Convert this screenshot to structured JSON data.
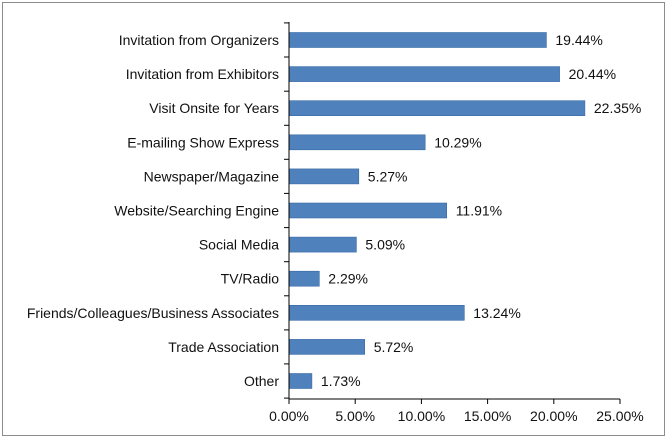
{
  "chart_data": {
    "type": "bar",
    "orientation": "horizontal",
    "categories": [
      "Invitation from Organizers",
      "Invitation from Exhibitors",
      "Visit Onsite for Years",
      "E-mailing Show Express",
      "Newspaper/Magazine",
      "Website/Searching Engine",
      "Social Media",
      "TV/Radio",
      "Friends/Colleagues/Business Associates",
      "Trade Association",
      "Other"
    ],
    "values": [
      19.44,
      20.44,
      22.35,
      10.29,
      5.27,
      11.91,
      5.09,
      2.29,
      13.24,
      5.72,
      1.73
    ],
    "value_labels": [
      "19.44%",
      "20.44%",
      "22.35%",
      "10.29%",
      "5.27%",
      "11.91%",
      "5.09%",
      "2.29%",
      "13.24%",
      "5.72%",
      "1.73%"
    ],
    "xlim": [
      0,
      25
    ],
    "x_ticks": [
      0,
      5,
      10,
      15,
      20,
      25
    ],
    "x_tick_labels": [
      "0.00%",
      "5.00%",
      "10.00%",
      "15.00%",
      "20.00%",
      "25.00%"
    ],
    "title": "",
    "xlabel": "",
    "ylabel": "",
    "grid": false,
    "legend": "none",
    "bar_color": "#4f81bd",
    "bar_edge_color": "#3a6aa5",
    "axis_color": "#000000"
  }
}
